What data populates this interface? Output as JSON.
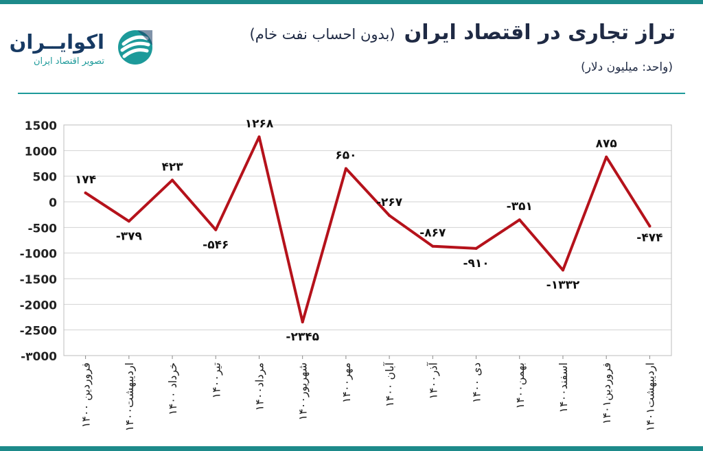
{
  "header": {
    "title": "تراز تجاری در اقتصاد ایران",
    "subtitle": "(بدون احساب نفت خام)",
    "unit": "(واحد: میلیون دلار)"
  },
  "brand": {
    "name": "اکوایــران",
    "tagline": "تصویر اقتصاد ایران",
    "logo_icon": "ecoiran-logo-mark"
  },
  "colors": {
    "line": "#b5121b",
    "accent": "#1d8a8a",
    "title": "#1f2a44"
  },
  "chart_data": {
    "type": "line",
    "title": "تراز تجاری در اقتصاد ایران",
    "xlabel": "",
    "ylabel": "",
    "ylim": [
      -3000,
      1500
    ],
    "yticks": [
      1500,
      1000,
      500,
      0,
      -500,
      -1000,
      -1500,
      -2000,
      -2500,
      -3000
    ],
    "ytick_labels": [
      "1500",
      "1000",
      "500",
      "0",
      "-500",
      "-1000",
      "-1500",
      "-2000",
      "-2500",
      "-۳000"
    ],
    "grid": true,
    "categories": [
      "فروردین ۱۴۰۰",
      "اردیبهشت۱۴۰۰",
      "خرداد ۱۴۰۰",
      "تیر۱۴۰۰",
      "مرداد۱۴۰۰",
      "شهریور۱۴۰۰",
      "مهر۱۴۰۰",
      "آبان ۱۴۰۰",
      "آذر۱۴۰۰",
      "دی ۱۴۰۰",
      "بهمن۱۴۰۰",
      "اسفند۱۴۰۰",
      "فروردین۱۴۰۱",
      "اردیبهشت۱۴۰۱"
    ],
    "values": [
      174,
      -379,
      423,
      -546,
      1268,
      -2345,
      650,
      -267,
      -867,
      -910,
      -351,
      -1332,
      875,
      -474
    ],
    "value_labels": [
      "۱۷۴",
      "-۳۷۹",
      "۴۲۳",
      "-۵۴۶",
      "۱۲۶۸",
      "-۲۳۴۵",
      "۶۵۰",
      "-۲۶۷",
      "-۸۶۷",
      "-۹۱۰",
      "-۳۵۱",
      "-۱۳۳۲",
      "۸۷۵",
      "-۴۷۴"
    ]
  }
}
